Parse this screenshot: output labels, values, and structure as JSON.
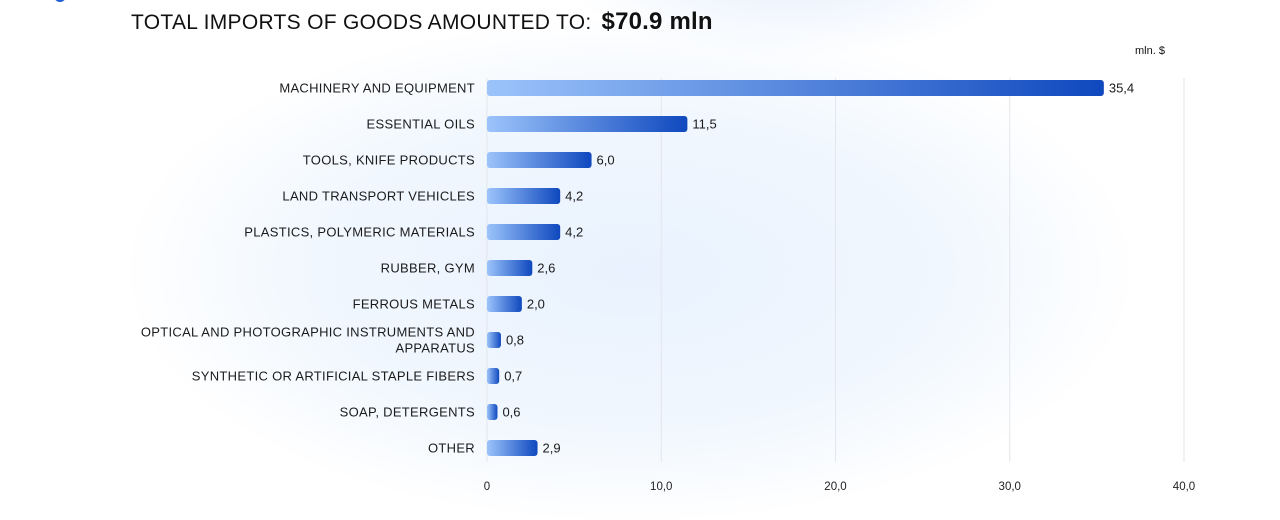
{
  "header": {
    "title": "TOTAL IMPORTS OF GOODS AMOUNTED TO:",
    "total": "$70.9  mln"
  },
  "chart_data": {
    "type": "bar",
    "orientation": "horizontal",
    "unit": "mln. $",
    "categories": [
      "MACHINERY AND EQUIPMENT",
      "ESSENTIAL OILS",
      "TOOLS, KNIFE PRODUCTS",
      "LAND TRANSPORT VEHICLES",
      "PLASTICS, POLYMERIC MATERIALS",
      "RUBBER, GYM",
      "FERROUS METALS",
      "OPTICAL AND PHOTOGRAPHIC INSTRUMENTS AND APPARATUS",
      "SYNTHETIC OR ARTIFICIAL STAPLE FIBERS",
      "SOAP, DETERGENTS",
      "OTHER"
    ],
    "values": [
      35.4,
      11.5,
      6.0,
      4.2,
      4.2,
      2.6,
      2.0,
      0.8,
      0.7,
      0.6,
      2.9
    ],
    "value_labels": [
      "35,4",
      "11,5",
      "6,0",
      "4,2",
      "4,2",
      "2,6",
      "2,0",
      "0,8",
      "0,7",
      "0,6",
      "2,9"
    ],
    "xlim": [
      0,
      40
    ],
    "xticks": [
      0,
      10,
      20,
      30,
      40
    ],
    "xtick_labels": [
      "0",
      "10,0",
      "20,0",
      "30,0",
      "40,0"
    ],
    "grid": true,
    "colors": {
      "bar_start": "#9cc4fb",
      "bar_end": "#0f48be",
      "grid": "#e3e6ec",
      "text": "#1b1b1b"
    }
  }
}
